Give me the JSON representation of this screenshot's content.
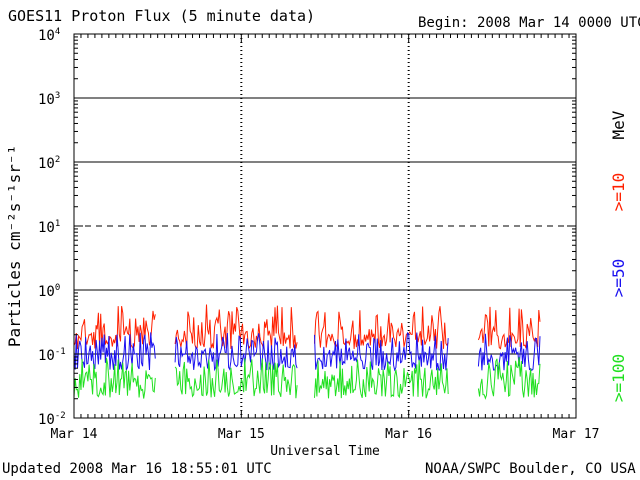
{
  "header": {
    "title": "GOES11 Proton Flux (5 minute data)",
    "begin": "Begin: 2008 Mar 14 0000 UTC"
  },
  "footer": {
    "updated": "Updated 2008 Mar 16 18:55:01 UTC",
    "source": "NOAA/SWPC Boulder, CO USA"
  },
  "colors": {
    "ge10": "#ff2000",
    "ge50": "#1a10f0",
    "ge100": "#20e020",
    "axis": "#000000"
  },
  "chart_data": {
    "type": "line",
    "title": "GOES11 Proton Flux (5 minute data)",
    "xlabel": "Universal Time",
    "ylabel": "Particles cm⁻²s⁻¹sr⁻¹",
    "yscale": "log",
    "ylim": [
      0.01,
      10000
    ],
    "xlim": [
      "2008-03-14T00:00",
      "2008-03-17T00:00"
    ],
    "x_ticks": [
      "Mar 14",
      "Mar 15",
      "Mar 16",
      "Mar 17"
    ],
    "y_ticks": [
      {
        "base": "10",
        "exp": "-2"
      },
      {
        "base": "10",
        "exp": "-1"
      },
      {
        "base": "10",
        "exp": "0"
      },
      {
        "base": "10",
        "exp": "1"
      },
      {
        "base": "10",
        "exp": "2"
      },
      {
        "base": "10",
        "exp": "3"
      },
      {
        "base": "10",
        "exp": "4"
      }
    ],
    "unit_label": "MeV",
    "reference_lines": [
      {
        "value": 1000,
        "style": "solid"
      },
      {
        "value": 100,
        "style": "solid"
      },
      {
        "value": 10,
        "style": "dashed"
      },
      {
        "value": 1,
        "style": "solid"
      },
      {
        "value": 0.1,
        "style": "solid"
      }
    ],
    "data_segments": [
      [
        "2008-03-14T00:00",
        "2008-03-14T11:40"
      ],
      [
        "2008-03-14T14:30",
        "2008-03-15T08:00"
      ],
      [
        "2008-03-15T10:30",
        "2008-03-16T05:40"
      ],
      [
        "2008-03-16T10:00",
        "2008-03-16T18:55"
      ]
    ],
    "series": [
      {
        "name": ">=10",
        "color": "#ff2000",
        "typical": 0.2,
        "range": [
          0.12,
          0.6
        ]
      },
      {
        "name": ">=50",
        "color": "#1a10f0",
        "typical": 0.1,
        "range": [
          0.055,
          0.22
        ]
      },
      {
        "name": ">=100",
        "color": "#20e020",
        "typical": 0.04,
        "range": [
          0.02,
          0.09
        ]
      }
    ]
  }
}
